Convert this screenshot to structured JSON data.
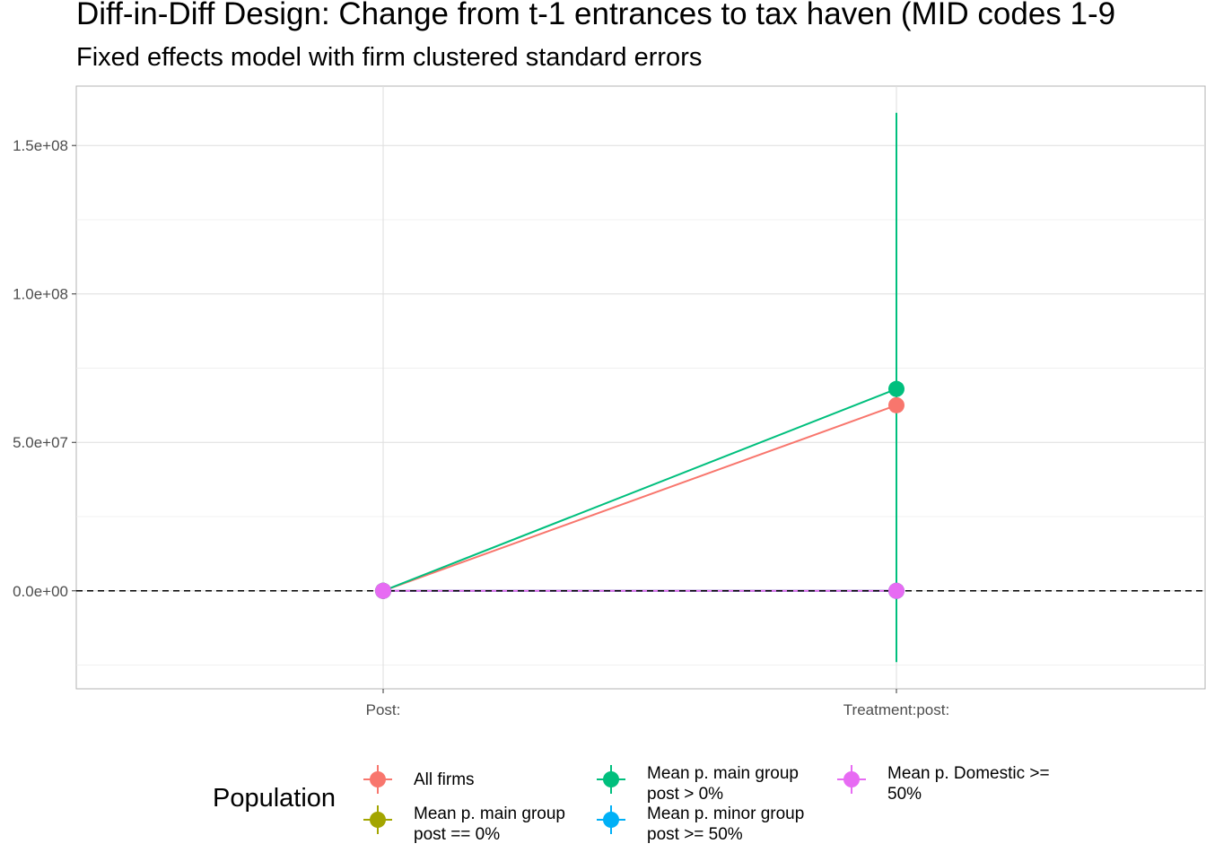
{
  "chart_data": {
    "type": "line",
    "title": "Diff-in-Diff Design: Change from t-1 entrances to tax haven (MID codes 1-9",
    "subtitle": "Fixed effects model with firm clustered standard errors",
    "xlabel": "",
    "ylabel": "",
    "categories": [
      "Post:",
      "Treatment:post:"
    ],
    "ylim": [
      -33000000,
      170000000
    ],
    "yticks": [
      0,
      50000000,
      100000000,
      150000000
    ],
    "ytick_labels": [
      "0.0e+00",
      "5.0e+07",
      "1.0e+08",
      "1.5e+08"
    ],
    "reference_line": {
      "y": 0,
      "style": "dashed",
      "color": "#000000"
    },
    "grid": true,
    "legend_position": "bottom",
    "legend_title": "Population",
    "series": [
      {
        "name": "All firms",
        "color": "#F8766D",
        "values": [
          0,
          62500000
        ],
        "ci_low": [
          0,
          62500000
        ],
        "ci_high": [
          0,
          62500000
        ]
      },
      {
        "name": "Mean p. main group\npost == 0%",
        "color": "#A3A500",
        "values": [
          0,
          0
        ],
        "ci_low": [
          0,
          0
        ],
        "ci_high": [
          0,
          0
        ]
      },
      {
        "name": "Mean p. main group\npost > 0%",
        "color": "#00BF7D",
        "values": [
          0,
          68000000
        ],
        "ci_low": [
          0,
          -24000000
        ],
        "ci_high": [
          0,
          161000000
        ]
      },
      {
        "name": "Mean p. minor group\npost >= 50%",
        "color": "#00B0F6",
        "values": [
          0,
          0
        ],
        "ci_low": [
          0,
          0
        ],
        "ci_high": [
          0,
          0
        ]
      },
      {
        "name": "Mean p. Domestic >=\n50%",
        "color": "#E76BF3",
        "values": [
          0,
          0
        ],
        "ci_low": [
          0,
          0
        ],
        "ci_high": [
          0,
          0
        ]
      }
    ]
  }
}
